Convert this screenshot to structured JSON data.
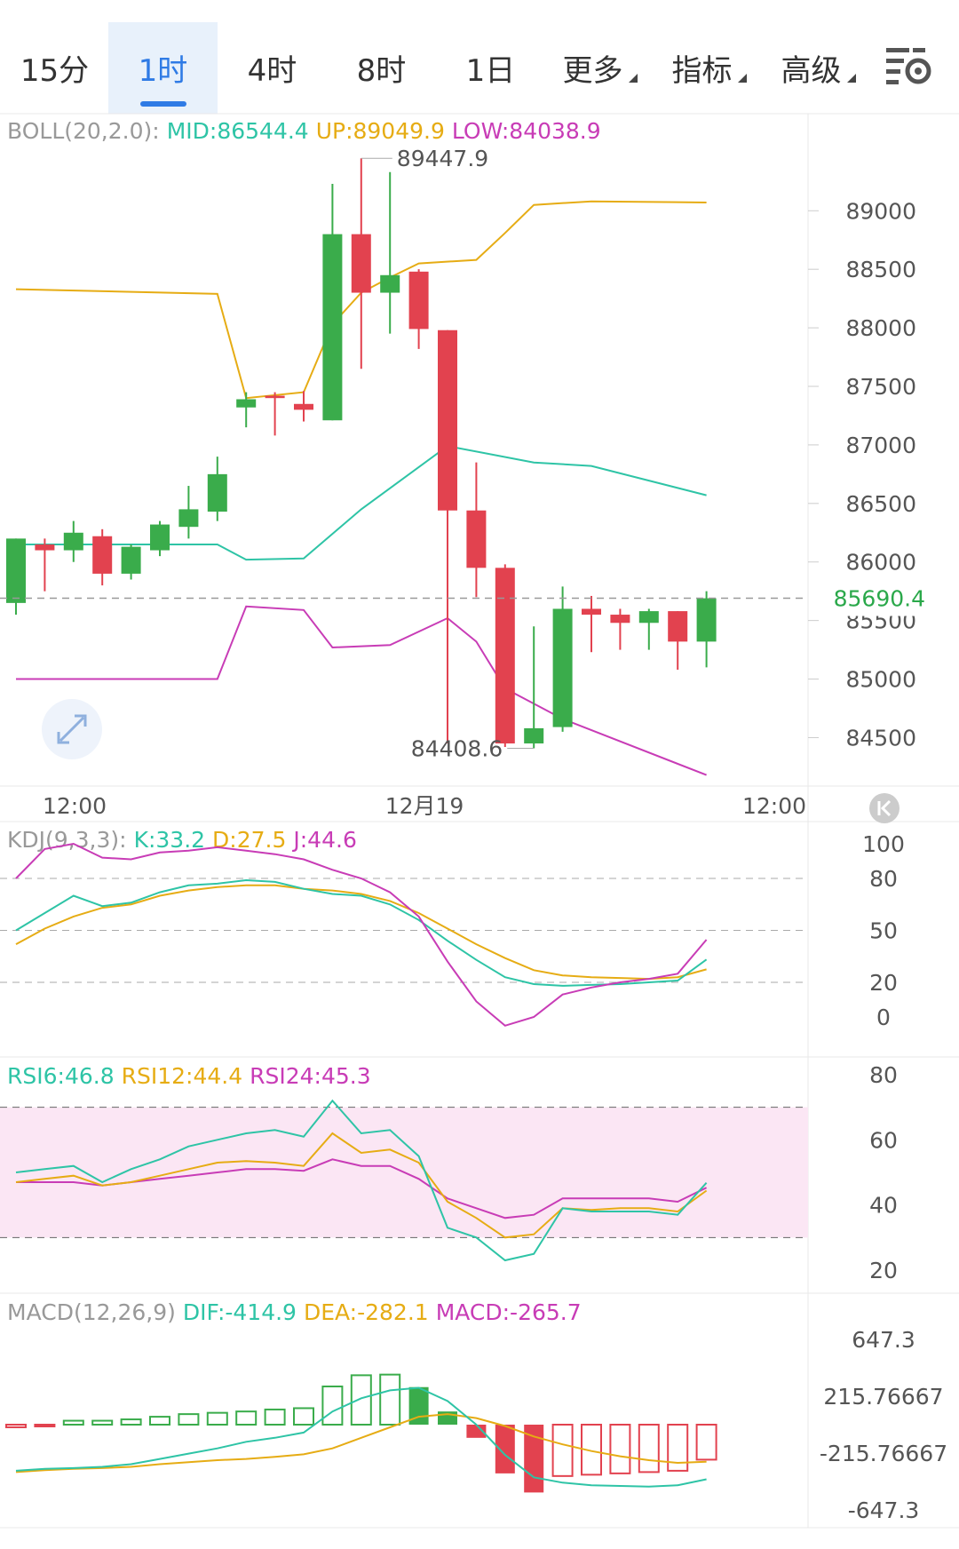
{
  "tabs": [
    {
      "label": "15分",
      "active": false
    },
    {
      "label": "1时",
      "active": true
    },
    {
      "label": "4时",
      "active": false
    },
    {
      "label": "8时",
      "active": false
    },
    {
      "label": "1日",
      "active": false
    },
    {
      "label": "更多",
      "active": false,
      "dropdown": true
    },
    {
      "label": "指标",
      "active": false,
      "dropdown": true
    },
    {
      "label": "高级",
      "active": false,
      "dropdown": true
    }
  ],
  "settings_icon": "chart-settings-icon",
  "colors": {
    "up": "#3aac4b",
    "down": "#e2424f",
    "mid": "#2ec4a6",
    "upper": "#e6ac14",
    "lower": "#c83cb6",
    "grid": "#e8e8e8",
    "price_tag": "#2aa84a"
  },
  "main_chart": {
    "indicator_label": "BOLL(20,2.0):",
    "mid_label": "MID:86544.4",
    "up_label": "UP:89049.9",
    "low_label": "LOW:84038.9",
    "high_marker": "89447.9",
    "low_marker": "84408.6",
    "current_price": "85690.4",
    "y_ticks": [
      "89000",
      "88500",
      "88000",
      "87500",
      "87000",
      "86500",
      "86000",
      "85500",
      "85000",
      "84500"
    ]
  },
  "x_axis": {
    "labels": [
      "12:00",
      "12月19",
      "12:00"
    ]
  },
  "kdj": {
    "label": "KDJ(9,3,3):",
    "k_label": "K:33.2",
    "d_label": "D:27.5",
    "j_label": "J:44.6",
    "y_ticks": [
      "100",
      "80",
      "50",
      "20",
      "0"
    ]
  },
  "rsi": {
    "rsi6_label": "RSI6:46.8",
    "rsi12_label": "RSI12:44.4",
    "rsi24_label": "RSI24:45.3",
    "y_ticks": [
      "80",
      "60",
      "40",
      "20"
    ]
  },
  "macd": {
    "label": "MACD(12,26,9)",
    "dif_label": "DIF:-414.9",
    "dea_label": "DEA:-282.1",
    "macd_label": "MACD:-265.7",
    "y_ticks": [
      "647.3",
      "215.76667",
      "-215.76667",
      "-647.3"
    ]
  },
  "chart_data": {
    "type": "candlestick",
    "title": "BOLL(20,2.0)",
    "y_range": [
      84200,
      89700
    ],
    "candles": [
      {
        "o": 85650,
        "h": 86200,
        "l": 85550,
        "c": 86200
      },
      {
        "o": 86150,
        "h": 86200,
        "l": 85750,
        "c": 86100
      },
      {
        "o": 86100,
        "h": 86350,
        "l": 86000,
        "c": 86250
      },
      {
        "o": 86220,
        "h": 86280,
        "l": 85800,
        "c": 85900
      },
      {
        "o": 85900,
        "h": 86150,
        "l": 85850,
        "c": 86130
      },
      {
        "o": 86100,
        "h": 86350,
        "l": 86050,
        "c": 86320
      },
      {
        "o": 86300,
        "h": 86650,
        "l": 86200,
        "c": 86450
      },
      {
        "o": 86430,
        "h": 86900,
        "l": 86350,
        "c": 86750
      },
      {
        "o": 87320,
        "h": 87450,
        "l": 87150,
        "c": 87390
      },
      {
        "o": 87420,
        "h": 87450,
        "l": 87080,
        "c": 87400
      },
      {
        "o": 87350,
        "h": 87460,
        "l": 87200,
        "c": 87300
      },
      {
        "o": 87210,
        "h": 89230,
        "l": 87210,
        "c": 88800
      },
      {
        "o": 88800,
        "h": 89448,
        "l": 87650,
        "c": 88300
      },
      {
        "o": 88300,
        "h": 89330,
        "l": 87950,
        "c": 88450
      },
      {
        "o": 88480,
        "h": 88500,
        "l": 87820,
        "c": 87990
      },
      {
        "o": 87980,
        "h": 87980,
        "l": 84450,
        "c": 86440
      },
      {
        "o": 86440,
        "h": 86850,
        "l": 85700,
        "c": 85950
      },
      {
        "o": 85950,
        "h": 85980,
        "l": 84420,
        "c": 84450
      },
      {
        "o": 84450,
        "h": 85450,
        "l": 84409,
        "c": 84580
      },
      {
        "o": 84590,
        "h": 85790,
        "l": 84550,
        "c": 85600
      },
      {
        "o": 85600,
        "h": 85710,
        "l": 85230,
        "c": 85550
      },
      {
        "o": 85550,
        "h": 85600,
        "l": 85250,
        "c": 85480
      },
      {
        "o": 85480,
        "h": 85600,
        "l": 85250,
        "c": 85580
      },
      {
        "o": 85580,
        "h": 85580,
        "l": 85080,
        "c": 85320
      },
      {
        "o": 85320,
        "h": 85750,
        "l": 85100,
        "c": 85690
      }
    ],
    "boll_mid": [
      [
        0,
        86150
      ],
      [
        7,
        86150
      ],
      [
        8,
        86020
      ],
      [
        10,
        86030
      ],
      [
        12,
        86450
      ],
      [
        15,
        86990
      ],
      [
        18,
        86850
      ],
      [
        20,
        86820
      ],
      [
        24,
        86570
      ]
    ],
    "boll_up": [
      [
        0,
        88330
      ],
      [
        7,
        88290
      ],
      [
        8,
        87400
      ],
      [
        10,
        87450
      ],
      [
        11,
        88030
      ],
      [
        12,
        88300
      ],
      [
        13,
        88430
      ],
      [
        14,
        88550
      ],
      [
        16,
        88580
      ],
      [
        17,
        88810
      ],
      [
        18,
        89050
      ],
      [
        20,
        89080
      ],
      [
        24,
        89070
      ]
    ],
    "boll_low": [
      [
        0,
        85000
      ],
      [
        7,
        85000
      ],
      [
        8,
        85620
      ],
      [
        10,
        85590
      ],
      [
        11,
        85270
      ],
      [
        13,
        85290
      ],
      [
        15,
        85520
      ],
      [
        16,
        85320
      ],
      [
        17,
        84920
      ],
      [
        19,
        84660
      ],
      [
        24,
        84180
      ]
    ],
    "kdj": {
      "y_range": [
        0,
        100
      ],
      "k": [
        [
          0,
          50
        ],
        [
          1,
          60
        ],
        [
          2,
          70
        ],
        [
          3,
          64
        ],
        [
          4,
          66
        ],
        [
          5,
          72
        ],
        [
          6,
          76
        ],
        [
          7,
          77
        ],
        [
          8,
          79
        ],
        [
          9,
          78
        ],
        [
          10,
          74
        ],
        [
          11,
          71
        ],
        [
          12,
          70
        ],
        [
          13,
          65
        ],
        [
          14,
          56
        ],
        [
          15,
          44
        ],
        [
          16,
          33
        ],
        [
          17,
          23
        ],
        [
          18,
          19
        ],
        [
          19,
          18
        ],
        [
          20,
          18.5
        ],
        [
          21,
          19
        ],
        [
          22,
          20
        ],
        [
          23,
          21
        ],
        [
          24,
          33.2
        ]
      ],
      "d": [
        [
          0,
          42
        ],
        [
          1,
          51
        ],
        [
          2,
          58
        ],
        [
          3,
          63
        ],
        [
          4,
          65
        ],
        [
          5,
          70
        ],
        [
          6,
          73
        ],
        [
          7,
          75
        ],
        [
          8,
          76
        ],
        [
          9,
          76
        ],
        [
          10,
          74
        ],
        [
          11,
          73
        ],
        [
          12,
          71
        ],
        [
          13,
          67
        ],
        [
          14,
          60
        ],
        [
          15,
          51
        ],
        [
          16,
          42
        ],
        [
          17,
          34
        ],
        [
          18,
          27
        ],
        [
          19,
          24
        ],
        [
          20,
          23
        ],
        [
          21,
          22.5
        ],
        [
          22,
          22
        ],
        [
          23,
          23
        ],
        [
          24,
          27.5
        ]
      ],
      "j": [
        [
          0,
          80
        ],
        [
          1,
          97
        ],
        [
          2,
          100
        ],
        [
          3,
          92
        ],
        [
          4,
          91
        ],
        [
          5,
          95
        ],
        [
          6,
          96
        ],
        [
          7,
          98
        ],
        [
          8,
          96
        ],
        [
          9,
          94
        ],
        [
          10,
          91
        ],
        [
          11,
          85
        ],
        [
          12,
          80
        ],
        [
          13,
          72
        ],
        [
          14,
          58
        ],
        [
          15,
          32
        ],
        [
          16,
          9
        ],
        [
          17,
          -5
        ],
        [
          18,
          0
        ],
        [
          19,
          13
        ],
        [
          20,
          17
        ],
        [
          21,
          20
        ],
        [
          22,
          22
        ],
        [
          23,
          25
        ],
        [
          24,
          44.6
        ]
      ]
    },
    "rsi": {
      "y_range": [
        20,
        80
      ],
      "rsi6": [
        [
          0,
          50
        ],
        [
          1,
          51
        ],
        [
          2,
          52
        ],
        [
          3,
          47
        ],
        [
          4,
          51
        ],
        [
          5,
          54
        ],
        [
          6,
          58
        ],
        [
          7,
          60
        ],
        [
          8,
          62
        ],
        [
          9,
          63
        ],
        [
          10,
          61
        ],
        [
          11,
          72
        ],
        [
          12,
          62
        ],
        [
          13,
          63
        ],
        [
          14,
          55
        ],
        [
          15,
          33
        ],
        [
          16,
          30
        ],
        [
          17,
          23
        ],
        [
          18,
          25
        ],
        [
          19,
          39
        ],
        [
          20,
          38
        ],
        [
          21,
          38
        ],
        [
          22,
          38
        ],
        [
          23,
          37
        ],
        [
          24,
          46.8
        ]
      ],
      "rsi12": [
        [
          0,
          47
        ],
        [
          1,
          48
        ],
        [
          2,
          49
        ],
        [
          3,
          46
        ],
        [
          4,
          47
        ],
        [
          5,
          49
        ],
        [
          6,
          51
        ],
        [
          7,
          53
        ],
        [
          8,
          53.5
        ],
        [
          9,
          53
        ],
        [
          10,
          52
        ],
        [
          11,
          62
        ],
        [
          12,
          56
        ],
        [
          13,
          57
        ],
        [
          14,
          53
        ],
        [
          15,
          41
        ],
        [
          16,
          36
        ],
        [
          17,
          30
        ],
        [
          18,
          31
        ],
        [
          19,
          39
        ],
        [
          20,
          38.5
        ],
        [
          21,
          39
        ],
        [
          22,
          39
        ],
        [
          23,
          38
        ],
        [
          24,
          44.4
        ]
      ],
      "rsi24": [
        [
          0,
          47
        ],
        [
          1,
          47
        ],
        [
          2,
          47
        ],
        [
          3,
          46
        ],
        [
          4,
          47
        ],
        [
          5,
          48
        ],
        [
          6,
          49
        ],
        [
          7,
          50
        ],
        [
          8,
          51
        ],
        [
          9,
          51
        ],
        [
          10,
          50.5
        ],
        [
          11,
          54
        ],
        [
          12,
          52
        ],
        [
          13,
          52
        ],
        [
          14,
          48
        ],
        [
          15,
          42
        ],
        [
          16,
          39
        ],
        [
          17,
          36
        ],
        [
          18,
          37
        ],
        [
          19,
          42
        ],
        [
          20,
          42
        ],
        [
          21,
          42
        ],
        [
          22,
          42
        ],
        [
          23,
          41
        ],
        [
          24,
          45.3
        ]
      ]
    },
    "macd": {
      "y_range": [
        -647.3,
        647.3
      ],
      "hist": [
        -20,
        -5,
        30,
        30,
        40,
        60,
        80,
        90,
        100,
        115,
        125,
        290,
        375,
        380,
        285,
        100,
        -100,
        -370,
        -515,
        -390,
        -380,
        -370,
        -360,
        -350,
        -265.7
      ],
      "dif": [
        [
          0,
          -350
        ],
        [
          1,
          -335
        ],
        [
          2,
          -330
        ],
        [
          3,
          -320
        ],
        [
          4,
          -300
        ],
        [
          5,
          -260
        ],
        [
          6,
          -220
        ],
        [
          7,
          -180
        ],
        [
          8,
          -130
        ],
        [
          9,
          -100
        ],
        [
          10,
          -60
        ],
        [
          11,
          100
        ],
        [
          12,
          200
        ],
        [
          13,
          260
        ],
        [
          14,
          280
        ],
        [
          15,
          180
        ],
        [
          16,
          0
        ],
        [
          17,
          -230
        ],
        [
          18,
          -400
        ],
        [
          19,
          -440
        ],
        [
          20,
          -460
        ],
        [
          21,
          -465
        ],
        [
          22,
          -470
        ],
        [
          23,
          -460
        ],
        [
          24,
          -414.9
        ]
      ],
      "dea": [
        [
          0,
          -360
        ],
        [
          1,
          -345
        ],
        [
          2,
          -335
        ],
        [
          3,
          -330
        ],
        [
          4,
          -320
        ],
        [
          5,
          -300
        ],
        [
          6,
          -285
        ],
        [
          7,
          -270
        ],
        [
          8,
          -260
        ],
        [
          9,
          -245
        ],
        [
          10,
          -225
        ],
        [
          11,
          -180
        ],
        [
          12,
          -100
        ],
        [
          13,
          -20
        ],
        [
          14,
          60
        ],
        [
          15,
          80
        ],
        [
          16,
          50
        ],
        [
          17,
          -10
        ],
        [
          18,
          -90
        ],
        [
          19,
          -150
        ],
        [
          20,
          -200
        ],
        [
          21,
          -240
        ],
        [
          22,
          -270
        ],
        [
          23,
          -290
        ],
        [
          24,
          -282.1
        ]
      ]
    }
  }
}
